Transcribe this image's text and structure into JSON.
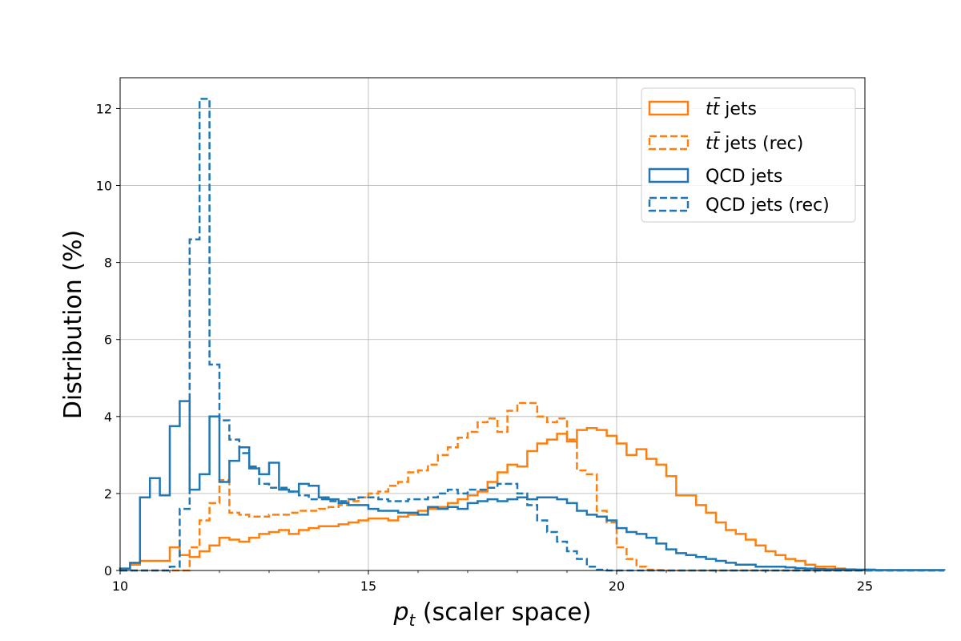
{
  "chart_data": {
    "type": "histogram-step",
    "xlabel_symbol": "p",
    "xlabel_subscript": "t",
    "xlabel_rest": " (scaler space)",
    "ylabel": "Distribution (%)",
    "xlim": [
      10,
      25
    ],
    "ylim": [
      0,
      12.8
    ],
    "xticks": [
      10,
      15,
      20,
      25
    ],
    "yticks": [
      0,
      2,
      4,
      6,
      8,
      10,
      12
    ],
    "grid": true,
    "legend_position": "upper right",
    "colors": {
      "ttbar": "#ff7f0e",
      "qcd": "#1f77b4"
    },
    "x_start": 10.0,
    "bin_width": 0.2,
    "legend": [
      {
        "series": "ttbar",
        "style": "solid",
        "prefix": "t",
        "bar_char": "t",
        "suffix": " jets"
      },
      {
        "series": "ttbar_rec",
        "style": "dashed",
        "prefix": "t",
        "bar_char": "t",
        "suffix": " jets (rec)"
      },
      {
        "series": "qcd",
        "style": "solid",
        "label": "QCD jets"
      },
      {
        "series": "qcd_rec",
        "style": "dashed",
        "label": "QCD jets (rec)"
      }
    ],
    "series": [
      {
        "key": "ttbar",
        "color": "ttbar",
        "style": "solid",
        "values": [
          0.05,
          0.15,
          0.25,
          0.25,
          0.25,
          0.6,
          0.4,
          0.35,
          0.5,
          0.65,
          0.85,
          0.8,
          0.75,
          0.85,
          0.95,
          1.0,
          1.05,
          0.95,
          1.05,
          1.1,
          1.15,
          1.15,
          1.2,
          1.25,
          1.3,
          1.35,
          1.35,
          1.3,
          1.4,
          1.45,
          1.55,
          1.6,
          1.65,
          1.75,
          1.85,
          1.95,
          2.05,
          2.3,
          2.55,
          2.75,
          2.7,
          3.1,
          3.3,
          3.4,
          3.55,
          3.35,
          3.65,
          3.7,
          3.65,
          3.5,
          3.3,
          3.0,
          3.15,
          2.9,
          2.75,
          2.45,
          1.95,
          1.95,
          1.7,
          1.5,
          1.25,
          1.05,
          0.95,
          0.8,
          0.65,
          0.5,
          0.4,
          0.3,
          0.25,
          0.15,
          0.1,
          0.1,
          0.05,
          0.03,
          0.02,
          0.02,
          0.01,
          0.01,
          0.01,
          0.01,
          0.01,
          0.01,
          0.01
        ]
      },
      {
        "key": "ttbar_rec",
        "color": "ttbar",
        "style": "dashed",
        "values": [
          0,
          0,
          0,
          0,
          0,
          0,
          0,
          0.6,
          1.3,
          1.75,
          2.35,
          1.5,
          1.45,
          1.4,
          1.4,
          1.45,
          1.45,
          1.5,
          1.55,
          1.55,
          1.6,
          1.65,
          1.7,
          1.8,
          1.9,
          2.0,
          2.05,
          2.2,
          2.3,
          2.55,
          2.6,
          2.75,
          3.0,
          3.2,
          3.45,
          3.6,
          3.85,
          3.95,
          3.6,
          4.15,
          4.35,
          4.35,
          4.0,
          3.85,
          3.95,
          3.4,
          2.6,
          2.5,
          1.55,
          1.25,
          0.6,
          0.3,
          0.1,
          0.02,
          0.01,
          0,
          0,
          0,
          0,
          0,
          0,
          0,
          0,
          0,
          0,
          0,
          0,
          0,
          0,
          0,
          0,
          0,
          0,
          0,
          0,
          0,
          0,
          0,
          0,
          0,
          0,
          0,
          0
        ]
      },
      {
        "key": "qcd",
        "color": "qcd",
        "style": "solid",
        "values": [
          0.05,
          0.2,
          1.9,
          2.4,
          1.95,
          3.75,
          4.4,
          2.1,
          2.5,
          4.0,
          2.3,
          2.85,
          3.2,
          2.65,
          2.5,
          2.8,
          2.1,
          2.05,
          2.25,
          2.2,
          1.9,
          1.85,
          1.75,
          1.7,
          1.7,
          1.6,
          1.55,
          1.55,
          1.5,
          1.5,
          1.45,
          1.65,
          1.6,
          1.65,
          1.6,
          1.75,
          1.8,
          1.85,
          1.8,
          1.85,
          1.9,
          1.85,
          1.9,
          1.9,
          1.85,
          1.75,
          1.55,
          1.45,
          1.4,
          1.3,
          1.1,
          1.0,
          0.95,
          0.85,
          0.7,
          0.55,
          0.45,
          0.4,
          0.35,
          0.3,
          0.25,
          0.2,
          0.15,
          0.15,
          0.1,
          0.1,
          0.1,
          0.08,
          0.06,
          0.05,
          0.04,
          0.03,
          0.03,
          0.02,
          0.02,
          0.02,
          0.01,
          0.01,
          0.01,
          0.01,
          0.01,
          0.01,
          0.01
        ]
      },
      {
        "key": "qcd_rec",
        "color": "qcd",
        "style": "dashed",
        "values": [
          0,
          0,
          0,
          0,
          0,
          0.1,
          1.6,
          8.6,
          12.25,
          5.35,
          3.9,
          3.4,
          3.05,
          2.7,
          2.25,
          2.15,
          2.15,
          2.05,
          1.95,
          1.85,
          1.85,
          1.8,
          1.8,
          1.85,
          1.9,
          1.9,
          1.85,
          1.8,
          1.8,
          1.85,
          1.85,
          1.9,
          2.0,
          2.1,
          2.0,
          2.1,
          2.1,
          2.15,
          2.25,
          2.25,
          2.0,
          1.7,
          1.3,
          1.0,
          0.75,
          0.5,
          0.3,
          0.1,
          0.02,
          0,
          0,
          0,
          0,
          0,
          0,
          0,
          0,
          0,
          0,
          0,
          0,
          0,
          0,
          0,
          0,
          0,
          0,
          0,
          0,
          0,
          0,
          0,
          0,
          0,
          0,
          0,
          0,
          0,
          0,
          0,
          0,
          0,
          0
        ]
      }
    ]
  }
}
